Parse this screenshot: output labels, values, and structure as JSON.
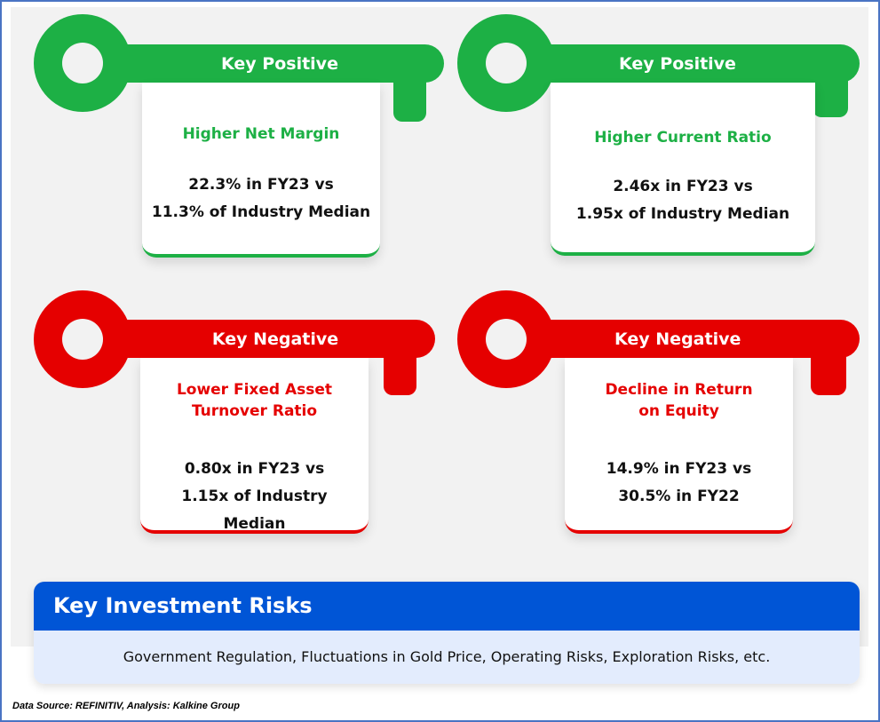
{
  "keys": [
    {
      "type": "Key Positive",
      "title": "Higher Net Margin",
      "line1": "22.3% in FY23 vs",
      "line2": "11.3% of Industry Median"
    },
    {
      "type": "Key Positive",
      "title": "Higher Current Ratio",
      "line1": "2.46x in FY23 vs",
      "line2": "1.95x of Industry Median"
    },
    {
      "type": "Key Negative",
      "title": "Lower Fixed Asset Turnover Ratio",
      "line1": "0.80x in FY23 vs",
      "line2": "1.15x of Industry Median"
    },
    {
      "type": "Key Negative",
      "title": "Decline in Return on Equity",
      "line1": "14.9% in FY23 vs",
      "line2": "30.5% in FY22"
    }
  ],
  "risks": {
    "title": "Key Investment Risks",
    "body": "Government Regulation, Fluctuations in Gold Price, Operating Risks, Exploration Risks, etc."
  },
  "footer": "Data Source: REFINITIV, Analysis: Kalkine Group",
  "colors": {
    "positive": "#1db045",
    "negative": "#e50000",
    "risk_header": "#0055d6",
    "risk_body": "#e3ecfd"
  }
}
